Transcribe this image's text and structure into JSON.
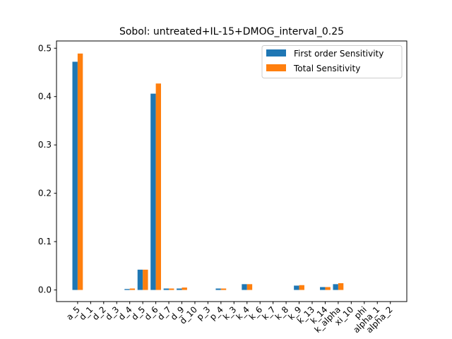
{
  "chart_data": {
    "type": "bar",
    "title": "Sobol: untreated+IL-15+DMOG_interval_0.25",
    "xlabel": "",
    "ylabel": "",
    "ylim": [
      -0.024,
      0.515
    ],
    "yticks": [
      0.0,
      0.1,
      0.2,
      0.3,
      0.4,
      0.5
    ],
    "ytick_labels": [
      "0.0",
      "0.1",
      "0.2",
      "0.3",
      "0.4",
      "0.5"
    ],
    "grid": false,
    "legend_position": "top-right",
    "categories": [
      "a_5",
      "d_1",
      "d_2",
      "d_3",
      "d_4",
      "d_5",
      "d_6",
      "d_7",
      "d_9",
      "d_10",
      "p_3",
      "p_4",
      "k_3",
      "k_4",
      "k_6",
      "k_7",
      "k_8",
      "k_9",
      "k_13",
      "k_14",
      "k_alpha",
      "xi_10",
      "phi",
      "alpha_1",
      "alpha_2"
    ],
    "series": [
      {
        "name": "First order Sensitivity",
        "color": "#1f77b4",
        "values": [
          0.472,
          0.0,
          0.0,
          0.0,
          0.002,
          0.042,
          0.406,
          0.003,
          0.003,
          0.0,
          0.0,
          0.003,
          0.0,
          0.012,
          0.0,
          0.0,
          0.0,
          0.009,
          0.0,
          0.006,
          0.012,
          0.0,
          0.0,
          0.0,
          0.0
        ]
      },
      {
        "name": "Total Sensitivity",
        "color": "#ff7f0e",
        "values": [
          0.489,
          0.0,
          0.0,
          0.0,
          0.003,
          0.042,
          0.427,
          0.003,
          0.005,
          0.0,
          0.0,
          0.003,
          0.0,
          0.012,
          0.0,
          0.0,
          0.0,
          0.01,
          0.0,
          0.006,
          0.014,
          0.0,
          0.0,
          0.0,
          0.0
        ]
      }
    ]
  }
}
